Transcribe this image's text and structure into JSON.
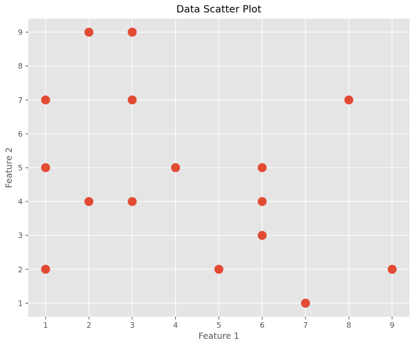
{
  "chart_data": {
    "type": "scatter",
    "title": "Data Scatter Plot",
    "xlabel": "Feature 1",
    "ylabel": "Feature 2",
    "xlim": [
      0.6,
      9.4
    ],
    "ylim": [
      0.6,
      9.4
    ],
    "xticks": [
      1,
      2,
      3,
      4,
      5,
      6,
      7,
      8,
      9
    ],
    "yticks": [
      1,
      2,
      3,
      4,
      5,
      6,
      7,
      8,
      9
    ],
    "grid": true,
    "background_color": "#e5e5e5",
    "grid_color": "#ffffff",
    "marker_color": "#e24a33",
    "points": [
      {
        "x": 1,
        "y": 7
      },
      {
        "x": 1,
        "y": 5
      },
      {
        "x": 1,
        "y": 2
      },
      {
        "x": 2,
        "y": 9
      },
      {
        "x": 2,
        "y": 4
      },
      {
        "x": 3,
        "y": 9
      },
      {
        "x": 3,
        "y": 7
      },
      {
        "x": 3,
        "y": 4
      },
      {
        "x": 4,
        "y": 5
      },
      {
        "x": 5,
        "y": 2
      },
      {
        "x": 6,
        "y": 5
      },
      {
        "x": 6,
        "y": 4
      },
      {
        "x": 6,
        "y": 3
      },
      {
        "x": 7,
        "y": 1
      },
      {
        "x": 8,
        "y": 7
      },
      {
        "x": 9,
        "y": 2
      }
    ]
  }
}
